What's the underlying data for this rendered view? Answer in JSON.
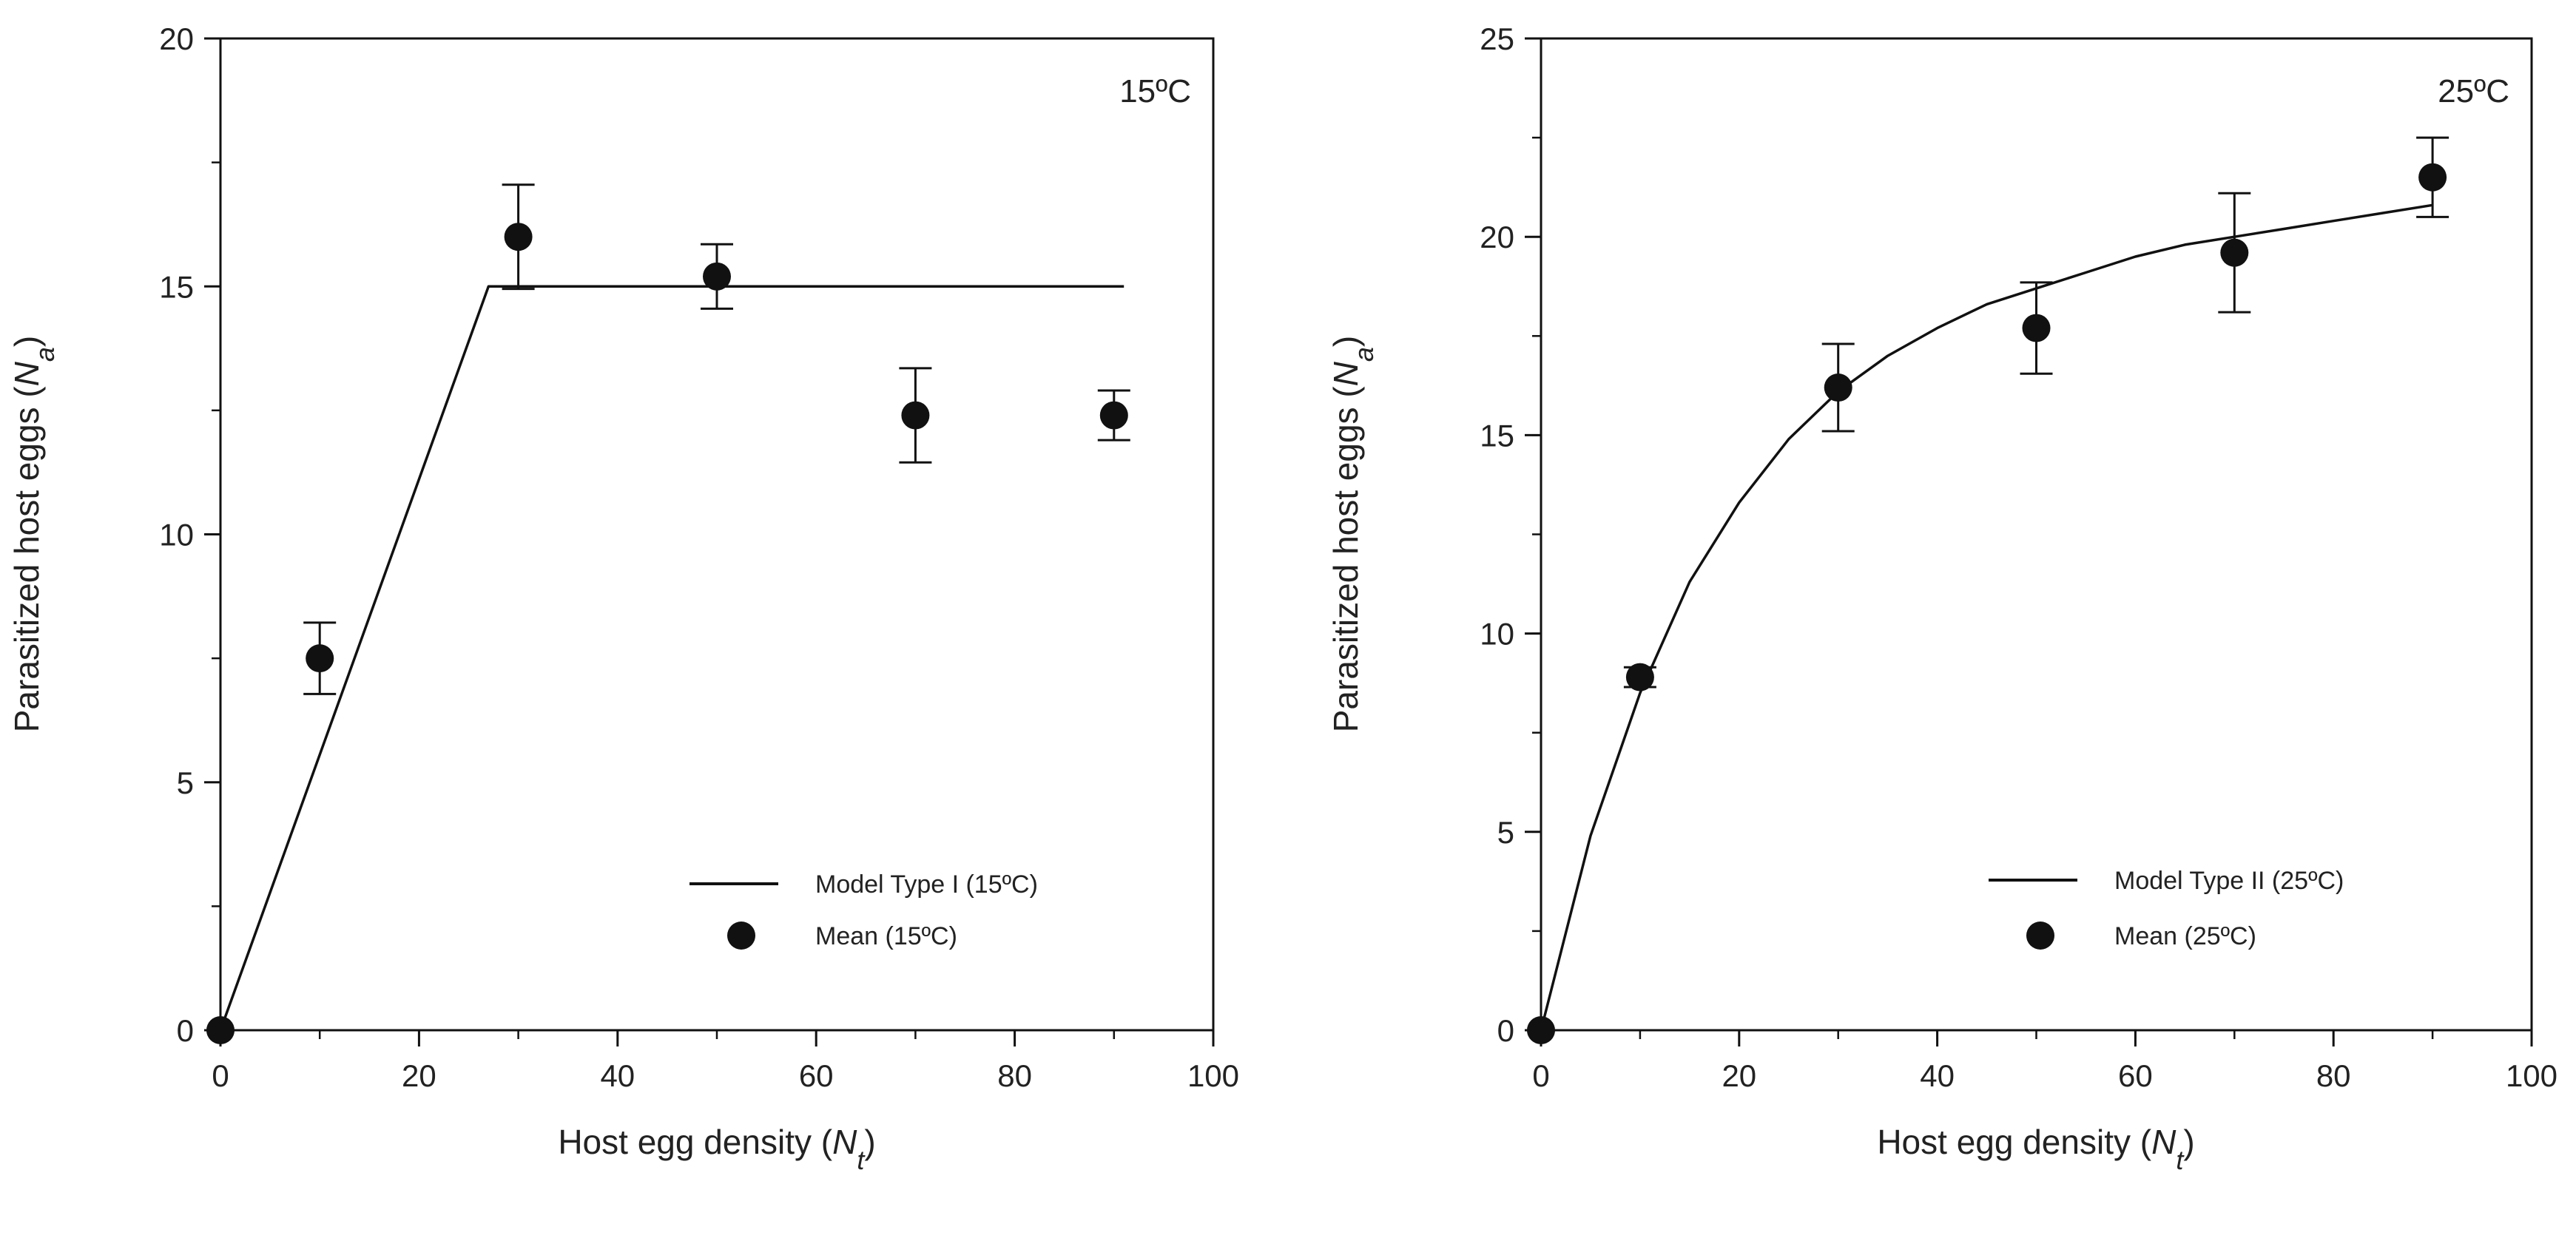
{
  "chart_data": [
    {
      "type": "line+scatter",
      "panel": "left",
      "temperature_label": "15ºC",
      "xlabel": {
        "prefix": "Host egg density (",
        "symbol": "N",
        "sub": "t",
        "suffix": ")"
      },
      "ylabel": {
        "prefix": "Parasitized host eggs (",
        "symbol": "N",
        "sub": "a",
        "suffix": ")"
      },
      "xlim": [
        0,
        100
      ],
      "ylim": [
        0,
        20
      ],
      "xticks": [
        0,
        20,
        40,
        60,
        80,
        100
      ],
      "yticks": [
        0,
        5,
        10,
        15,
        20
      ],
      "x_minor_step": 10,
      "y_minor_step": 2.5,
      "grid": false,
      "legend_position": "bottom-right",
      "series": [
        {
          "name": "Model Type I (15ºC)",
          "kind": "line",
          "x": [
            0,
            27,
            91
          ],
          "y": [
            0,
            15,
            15
          ]
        },
        {
          "name": "Mean (15ºC)",
          "kind": "scatter",
          "x": [
            0,
            10,
            30,
            50,
            70,
            90
          ],
          "y": [
            0,
            7.5,
            16.0,
            15.2,
            12.4,
            12.4
          ],
          "err": [
            0,
            0.72,
            1.05,
            0.65,
            0.95,
            0.5
          ]
        }
      ]
    },
    {
      "type": "line+scatter",
      "panel": "right",
      "temperature_label": "25ºC",
      "xlabel": {
        "prefix": "Host egg density (",
        "symbol": "N",
        "sub": "t",
        "suffix": ")"
      },
      "ylabel": {
        "prefix": "Parasitized host eggs (",
        "symbol": "N",
        "sub": "a",
        "suffix": ")"
      },
      "xlim": [
        0,
        100
      ],
      "ylim": [
        0,
        25
      ],
      "xticks": [
        0,
        20,
        40,
        60,
        80,
        100
      ],
      "yticks": [
        0,
        5,
        10,
        15,
        20,
        25
      ],
      "x_minor_step": 10,
      "y_minor_step": 2.5,
      "grid": false,
      "legend_position": "bottom-right",
      "series": [
        {
          "name": "Model Type II (25ºC)",
          "kind": "line",
          "x": [
            0,
            5,
            10,
            15,
            20,
            25,
            30,
            35,
            40,
            45,
            50,
            55,
            60,
            65,
            70,
            75,
            80,
            85,
            90
          ],
          "y": [
            0,
            4.9,
            8.5,
            11.3,
            13.3,
            14.9,
            16.1,
            17.0,
            17.7,
            18.3,
            18.7,
            19.1,
            19.5,
            19.8,
            20.0,
            20.2,
            20.4,
            20.6,
            20.8
          ]
        },
        {
          "name": "Mean (25ºC)",
          "kind": "scatter",
          "x": [
            0,
            10,
            30,
            50,
            70,
            90
          ],
          "y": [
            0,
            8.9,
            16.2,
            17.7,
            19.6,
            21.5
          ],
          "err": [
            0,
            0.25,
            1.1,
            1.15,
            1.5,
            1.0
          ]
        }
      ]
    }
  ]
}
